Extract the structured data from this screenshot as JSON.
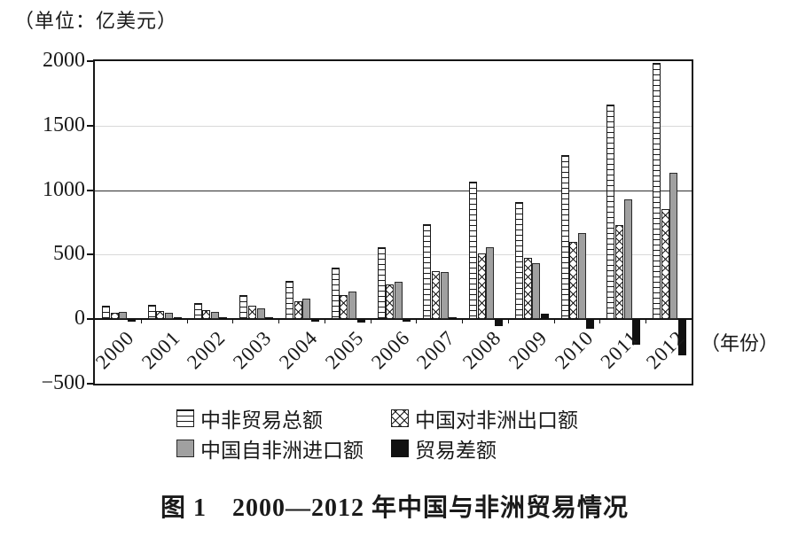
{
  "unit_label": "（单位：亿美元）",
  "year_axis_note": "（年份）",
  "caption": "图 1　2000—2012 年中国与非洲贸易情况",
  "colors": {
    "ink": "#1a1a1a",
    "gray_bar": "#a0a0a0",
    "black_bar": "#111111",
    "grid_light": "#d9d9d9",
    "grid_dark": "#2e2e2e"
  },
  "chart_data": {
    "type": "bar",
    "title": "图 1　2000—2012 年中国与非洲贸易情况",
    "xlabel": "（年份）",
    "ylabel": "（单位：亿美元）",
    "ylim": [
      -500,
      2000
    ],
    "yticks": [
      {
        "label": "2000",
        "value": 2000
      },
      {
        "label": "1500",
        "value": 1500
      },
      {
        "label": "1000",
        "value": 1000
      },
      {
        "label": "500",
        "value": 500
      },
      {
        "label": "0",
        "value": 0
      },
      {
        "label": "−500",
        "value": -500
      }
    ],
    "gridlines_light": [
      1500,
      500
    ],
    "gridlines_dark": [
      1000
    ],
    "legend_position": "bottom",
    "categories": [
      "2000",
      "2001",
      "2002",
      "2003",
      "2004",
      "2005",
      "2006",
      "2007",
      "2008",
      "2009",
      "2010",
      "2011",
      "2012"
    ],
    "series": [
      {
        "id": "total",
        "name": "中非贸易总额",
        "pattern": "hlines",
        "values": [
          106,
          108,
          124,
          185,
          294,
          398,
          555,
          736,
          1068,
          910,
          1269,
          1663,
          1985
        ]
      },
      {
        "id": "export",
        "name": "中国对非洲出口额",
        "pattern": "crosshatch",
        "values": [
          50,
          60,
          70,
          101,
          138,
          186,
          267,
          373,
          508,
          477,
          599,
          731,
          853
        ]
      },
      {
        "id": "import",
        "name": "中国自非洲进口额",
        "pattern": "gray",
        "values": [
          56,
          48,
          54,
          84,
          156,
          211,
          288,
          363,
          560,
          433,
          670,
          932,
          1132
        ]
      },
      {
        "id": "balance",
        "name": "贸易差额",
        "pattern": "black",
        "values": [
          -5,
          12,
          16,
          17,
          -18,
          -25,
          -21,
          10,
          -52,
          44,
          -71,
          -201,
          -279
        ]
      }
    ]
  }
}
